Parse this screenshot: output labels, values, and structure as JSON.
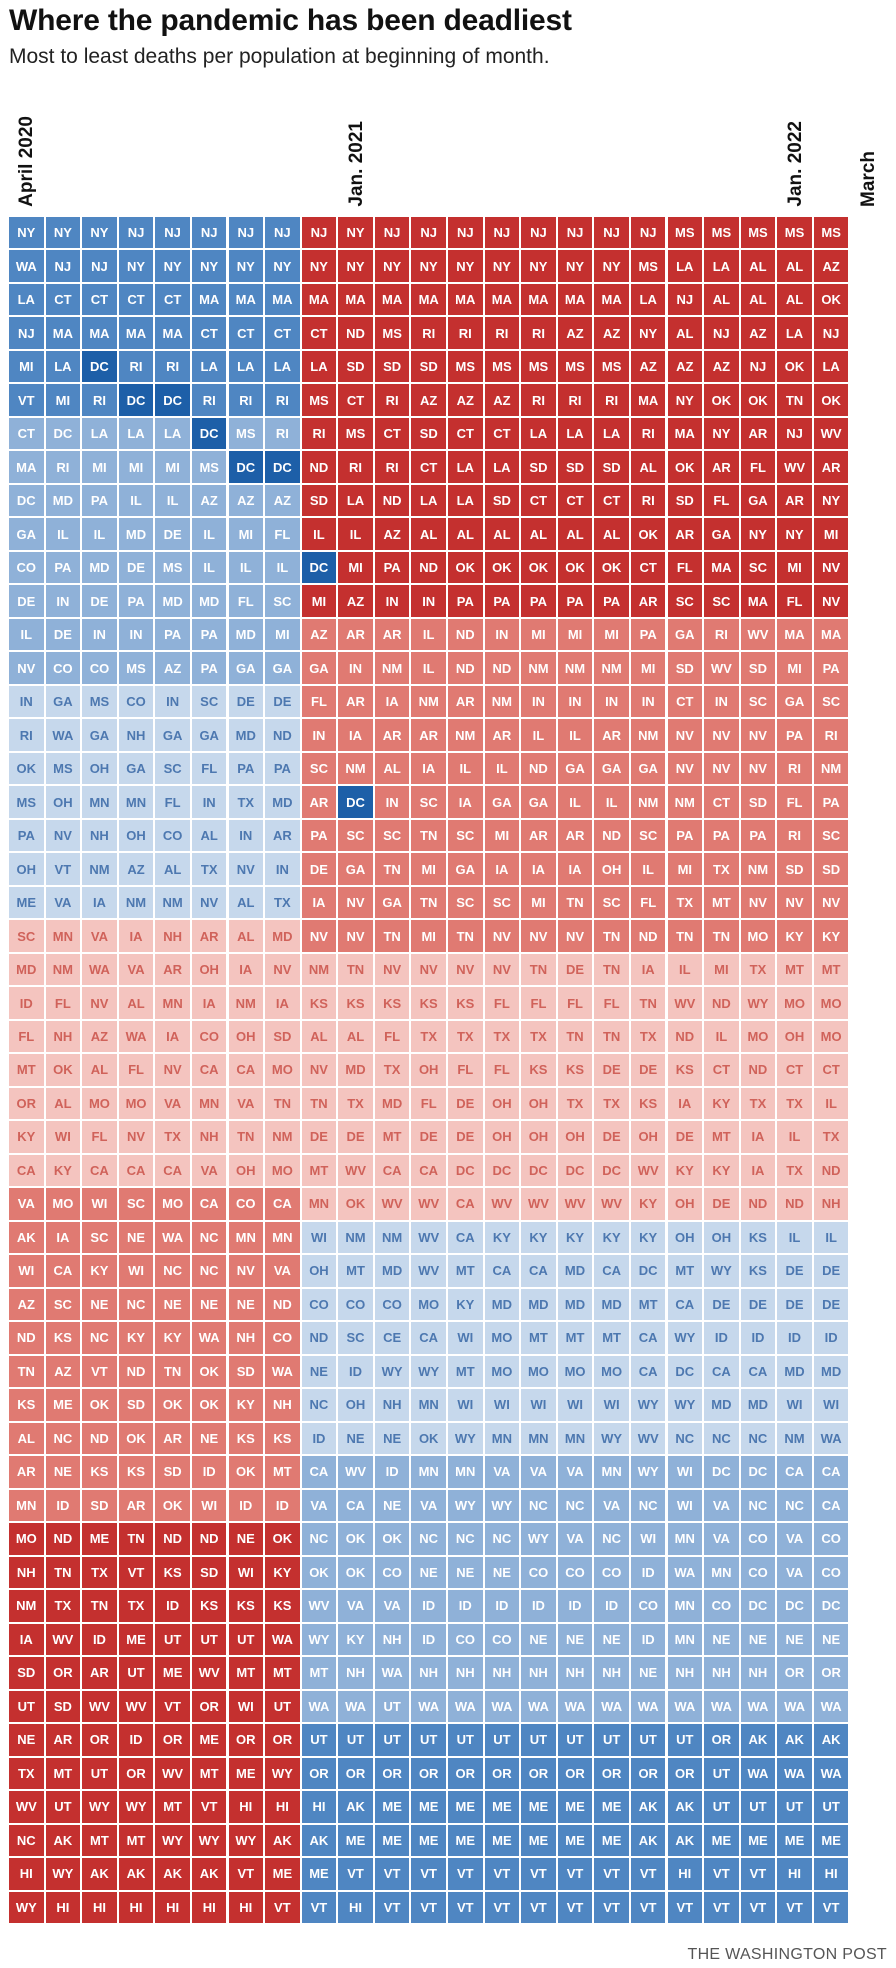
{
  "title": "Where the pandemic has been deadliest",
  "subtitle": "Most to least deaths per population at beginning of month.",
  "source": "THE WASHINGTON POST",
  "colors": {
    "high_dark": "#c4302f",
    "high_mid": "#e07a72",
    "high_light": "#f4c4bf",
    "low_light": "#c6d8ec",
    "low_mid": "#8fb1d8",
    "low_dark": "#4f86c2",
    "extreme_low": "#1d5fa8",
    "text_light": "#ffffff"
  },
  "chart_data": {
    "type": "heatmap",
    "x_tick_labels": [
      {
        "col": 0,
        "label": "April 2020"
      },
      {
        "col": 9,
        "label": "Jan. 2021"
      },
      {
        "col": 21,
        "label": "Jan. 2022"
      },
      {
        "col": 23,
        "label": "March"
      }
    ],
    "columns": [
      [
        "NY",
        "WA",
        "LA",
        "NJ",
        "MI",
        "VT",
        "CT",
        "MA",
        "DC",
        "GA",
        "CO",
        "DE",
        "IL",
        "NV",
        "IN",
        "RI",
        "OK",
        "MS",
        "PA",
        "OH",
        "ME",
        "SC",
        "MD",
        "ID",
        "FL",
        "MT",
        "OR",
        "KY",
        "CA",
        "VA",
        "AK",
        "WI",
        "AZ",
        "ND",
        "TN",
        "KS",
        "AL",
        "AR",
        "MN",
        "MO",
        "NH",
        "NM",
        "IA",
        "SD",
        "UT",
        "NE",
        "TX",
        "WV",
        "NC",
        "HI",
        "WY"
      ],
      [
        "NY",
        "NJ",
        "CT",
        "MA",
        "LA",
        "MI",
        "DC",
        "RI",
        "MD",
        "IL",
        "PA",
        "IN",
        "DE",
        "CO",
        "GA",
        "WA",
        "MS",
        "OH",
        "NV",
        "VT",
        "VA",
        "MN",
        "NM",
        "FL",
        "NH",
        "OK",
        "AL",
        "WI",
        "KY",
        "MO",
        "IA",
        "CA",
        "SC",
        "KS",
        "AZ",
        "ME",
        "NC",
        "NE",
        "ID",
        "ND",
        "TN",
        "TX",
        "WV",
        "OR",
        "SD",
        "AR",
        "MT",
        "UT",
        "AK",
        "WY",
        "HI"
      ],
      [
        "NY",
        "NJ",
        "CT",
        "MA",
        "DC",
        "RI",
        "LA",
        "MI",
        "PA",
        "IL",
        "MD",
        "DE",
        "IN",
        "CO",
        "MS",
        "GA",
        "OH",
        "MN",
        "NH",
        "NM",
        "IA",
        "VA",
        "WA",
        "NV",
        "AZ",
        "AL",
        "MO",
        "FL",
        "CA",
        "WI",
        "SC",
        "KY",
        "NE",
        "NC",
        "VT",
        "OK",
        "ND",
        "KS",
        "SD",
        "ME",
        "TX",
        "TN",
        "ID",
        "AR",
        "WV",
        "OR",
        "UT",
        "WY",
        "MT",
        "AK",
        "HI"
      ],
      [
        "NJ",
        "NY",
        "CT",
        "MA",
        "RI",
        "DC",
        "LA",
        "MI",
        "IL",
        "MD",
        "DE",
        "PA",
        "IN",
        "MS",
        "CO",
        "NH",
        "GA",
        "MN",
        "OH",
        "AZ",
        "NM",
        "IA",
        "VA",
        "AL",
        "WA",
        "FL",
        "MO",
        "NV",
        "CA",
        "SC",
        "NE",
        "WI",
        "NC",
        "KY",
        "ND",
        "SD",
        "OK",
        "KS",
        "AR",
        "TN",
        "VT",
        "TX",
        "ME",
        "UT",
        "WV",
        "ID",
        "OR",
        "WY",
        "MT",
        "AK",
        "HI"
      ],
      [
        "NJ",
        "NY",
        "CT",
        "MA",
        "RI",
        "DC",
        "LA",
        "MI",
        "IL",
        "DE",
        "MS",
        "MD",
        "PA",
        "AZ",
        "IN",
        "GA",
        "SC",
        "FL",
        "CO",
        "AL",
        "NM",
        "NH",
        "AR",
        "MN",
        "IA",
        "NV",
        "VA",
        "TX",
        "CA",
        "MO",
        "WA",
        "NC",
        "NE",
        "KY",
        "TN",
        "OK",
        "AR",
        "SD",
        "OK",
        "ND",
        "KS",
        "ID",
        "UT",
        "ME",
        "VT",
        "OR",
        "WV",
        "MT",
        "WY",
        "AK",
        "HI"
      ],
      [
        "NJ",
        "NY",
        "MA",
        "CT",
        "LA",
        "RI",
        "DC",
        "MS",
        "AZ",
        "IL",
        "IL",
        "MD",
        "PA",
        "PA",
        "SC",
        "GA",
        "FL",
        "IN",
        "AL",
        "TX",
        "NV",
        "AR",
        "OH",
        "IA",
        "CO",
        "CA",
        "MN",
        "NH",
        "VA",
        "CA",
        "NC",
        "NC",
        "NE",
        "WA",
        "OK",
        "OK",
        "NE",
        "ID",
        "WI",
        "ND",
        "SD",
        "KS",
        "UT",
        "WV",
        "OR",
        "ME",
        "MT",
        "VT",
        "WY",
        "AK",
        "HI"
      ],
      [
        "NJ",
        "NY",
        "MA",
        "CT",
        "LA",
        "RI",
        "MS",
        "DC",
        "AZ",
        "MI",
        "IL",
        "FL",
        "MD",
        "GA",
        "DE",
        "MD",
        "PA",
        "TX",
        "IN",
        "NV",
        "AL",
        "AL",
        "IA",
        "NM",
        "OH",
        "CA",
        "VA",
        "TN",
        "OH",
        "CO",
        "MN",
        "NV",
        "NE",
        "NH",
        "SD",
        "KY",
        "KS",
        "OK",
        "ID",
        "NE",
        "WI",
        "KS",
        "UT",
        "MT",
        "WI",
        "OR",
        "ME",
        "HI",
        "WY",
        "VT",
        "HI"
      ],
      [
        "NJ",
        "NY",
        "MA",
        "CT",
        "LA",
        "RI",
        "RI",
        "DC",
        "AZ",
        "FL",
        "IL",
        "SC",
        "MI",
        "GA",
        "DE",
        "ND",
        "PA",
        "MD",
        "AR",
        "IN",
        "TX",
        "MD",
        "NV",
        "IA",
        "SD",
        "MO",
        "TN",
        "NM",
        "MO",
        "CA",
        "MN",
        "VA",
        "ND",
        "CO",
        "WA",
        "NH",
        "KS",
        "MT",
        "ID",
        "OK",
        "KY",
        "KS",
        "WA",
        "MT",
        "UT",
        "OR",
        "WY",
        "HI",
        "AK",
        "ME",
        "VT"
      ],
      [
        "NJ",
        "NY",
        "MA",
        "CT",
        "LA",
        "MS",
        "RI",
        "ND",
        "SD",
        "IL",
        "DC",
        "MI",
        "AZ",
        "GA",
        "FL",
        "IN",
        "SC",
        "AR",
        "PA",
        "DE",
        "IA",
        "NV",
        "NM",
        "KS",
        "AL",
        "NV",
        "TN",
        "DE",
        "MT",
        "MN",
        "WI",
        "OH",
        "CO",
        "ND",
        "NE",
        "NC",
        "ID",
        "CA",
        "VA",
        "NC",
        "OK",
        "WV",
        "WY",
        "MT",
        "WA",
        "UT",
        "OR",
        "HI",
        "AK",
        "ME",
        "VT"
      ],
      [
        "NY",
        "NY",
        "MA",
        "ND",
        "SD",
        "CT",
        "MS",
        "RI",
        "LA",
        "IL",
        "MI",
        "AZ",
        "AR",
        "IN",
        "AR",
        "IA",
        "NM",
        "DC",
        "SC",
        "GA",
        "NV",
        "NV",
        "TN",
        "KS",
        "AL",
        "MD",
        "TX",
        "DE",
        "WV",
        "OK",
        "NM",
        "MT",
        "CO",
        "SC",
        "ID",
        "OH",
        "NE",
        "WV",
        "CA",
        "OK",
        "OK",
        "VA",
        "KY",
        "NH",
        "WA",
        "UT",
        "OR",
        "AK",
        "ME",
        "VT",
        "HI"
      ],
      [
        "NJ",
        "NY",
        "MA",
        "MS",
        "SD",
        "RI",
        "CT",
        "RI",
        "ND",
        "AZ",
        "PA",
        "IN",
        "AR",
        "NM",
        "IA",
        "AR",
        "AL",
        "IN",
        "SC",
        "TN",
        "GA",
        "TN",
        "NV",
        "KS",
        "FL",
        "TX",
        "MD",
        "MT",
        "CA",
        "WV",
        "NM",
        "MD",
        "CO",
        "CE",
        "WY",
        "NH",
        "NE",
        "ID",
        "NE",
        "OK",
        "CO",
        "VA",
        "NH",
        "WA",
        "UT",
        "UT",
        "OR",
        "ME",
        "ME",
        "VT",
        "VT"
      ],
      [
        "NJ",
        "NY",
        "MA",
        "RI",
        "SD",
        "AZ",
        "SD",
        "CT",
        "LA",
        "AL",
        "ND",
        "IN",
        "IL",
        "IL",
        "NM",
        "AR",
        "IA",
        "SC",
        "TN",
        "MI",
        "TN",
        "MI",
        "NV",
        "KS",
        "TX",
        "OH",
        "FL",
        "DE",
        "CA",
        "WV",
        "WV",
        "WV",
        "MO",
        "CA",
        "WY",
        "MN",
        "OK",
        "MN",
        "VA",
        "NC",
        "NE",
        "ID",
        "ID",
        "NH",
        "WA",
        "UT",
        "OR",
        "ME",
        "ME",
        "VT",
        "VT"
      ],
      [
        "NJ",
        "NY",
        "MA",
        "RI",
        "MS",
        "AZ",
        "CT",
        "LA",
        "LA",
        "AL",
        "OK",
        "PA",
        "ND",
        "ND",
        "AR",
        "NM",
        "IL",
        "IA",
        "SC",
        "GA",
        "SC",
        "TN",
        "NV",
        "KS",
        "TX",
        "FL",
        "DE",
        "DE",
        "DC",
        "CA",
        "CA",
        "MT",
        "KY",
        "WI",
        "MT",
        "WI",
        "WY",
        "MN",
        "WY",
        "NC",
        "NE",
        "ID",
        "CO",
        "NH",
        "WA",
        "UT",
        "OR",
        "ME",
        "ME",
        "VT",
        "VT"
      ],
      [
        "NJ",
        "NY",
        "MA",
        "RI",
        "MS",
        "AZ",
        "CT",
        "LA",
        "SD",
        "AL",
        "OK",
        "PA",
        "IN",
        "ND",
        "NM",
        "AR",
        "IL",
        "GA",
        "MI",
        "IA",
        "SC",
        "NV",
        "NV",
        "FL",
        "TX",
        "FL",
        "OH",
        "OH",
        "DC",
        "WV",
        "KY",
        "CA",
        "MD",
        "MO",
        "MO",
        "WI",
        "MN",
        "VA",
        "WY",
        "NC",
        "NE",
        "ID",
        "CO",
        "NH",
        "WA",
        "UT",
        "OR",
        "ME",
        "ME",
        "VT",
        "VT"
      ],
      [
        "NJ",
        "NY",
        "MA",
        "RI",
        "MS",
        "RI",
        "LA",
        "SD",
        "CT",
        "AL",
        "OK",
        "PA",
        "MI",
        "NM",
        "IN",
        "IL",
        "ND",
        "GA",
        "AR",
        "IA",
        "MI",
        "NV",
        "TN",
        "FL",
        "TX",
        "KS",
        "OH",
        "OH",
        "DC",
        "WV",
        "KY",
        "CA",
        "MD",
        "MT",
        "MO",
        "WI",
        "MN",
        "VA",
        "NC",
        "WY",
        "CO",
        "ID",
        "NE",
        "NH",
        "WA",
        "UT",
        "OR",
        "ME",
        "ME",
        "VT",
        "VT"
      ],
      [
        "NJ",
        "NY",
        "MA",
        "AZ",
        "MS",
        "RI",
        "LA",
        "SD",
        "CT",
        "AL",
        "OK",
        "PA",
        "MI",
        "NM",
        "IN",
        "IL",
        "GA",
        "IL",
        "AR",
        "IA",
        "TN",
        "NV",
        "DE",
        "FL",
        "TN",
        "KS",
        "TX",
        "OH",
        "DC",
        "WV",
        "KY",
        "MD",
        "MD",
        "MT",
        "MO",
        "WI",
        "MN",
        "VA",
        "NC",
        "VA",
        "CO",
        "ID",
        "NE",
        "NH",
        "WA",
        "UT",
        "OR",
        "ME",
        "ME",
        "VT",
        "VT"
      ],
      [
        "NJ",
        "NY",
        "MA",
        "AZ",
        "MS",
        "RI",
        "LA",
        "SD",
        "CT",
        "AL",
        "OK",
        "PA",
        "MI",
        "NM",
        "IN",
        "AR",
        "GA",
        "IL",
        "ND",
        "OH",
        "SC",
        "TN",
        "TN",
        "FL",
        "TN",
        "DE",
        "TX",
        "DE",
        "DC",
        "WV",
        "KY",
        "CA",
        "MD",
        "MT",
        "MO",
        "WI",
        "WY",
        "MN",
        "VA",
        "NC",
        "CO",
        "ID",
        "NE",
        "NH",
        "WA",
        "UT",
        "OR",
        "ME",
        "ME",
        "VT",
        "VT"
      ],
      [
        "NJ",
        "MS",
        "LA",
        "NY",
        "AZ",
        "MA",
        "RI",
        "AL",
        "RI",
        "OK",
        "CT",
        "AR",
        "PA",
        "MI",
        "IN",
        "NM",
        "GA",
        "NM",
        "SC",
        "IL",
        "FL",
        "ND",
        "IA",
        "TN",
        "TX",
        "DE",
        "KS",
        "OH",
        "WV",
        "KY",
        "KY",
        "DC",
        "MT",
        "CA",
        "CA",
        "WY",
        "WV",
        "WY",
        "NC",
        "WI",
        "ID",
        "CO",
        "ID",
        "NE",
        "WA",
        "UT",
        "OR",
        "AK",
        "AK",
        "VT",
        "VT"
      ],
      [
        "MS",
        "LA",
        "NJ",
        "AL",
        "AZ",
        "NY",
        "MA",
        "OK",
        "SD",
        "AR",
        "FL",
        "SC",
        "GA",
        "SD",
        "CT",
        "NV",
        "NV",
        "NM",
        "PA",
        "MI",
        "TX",
        "TN",
        "IL",
        "WV",
        "ND",
        "KS",
        "IA",
        "DE",
        "KY",
        "OH",
        "OH",
        "MT",
        "CA",
        "WY",
        "DC",
        "WY",
        "NC",
        "WI",
        "WI",
        "MN",
        "WA",
        "MN",
        "MN",
        "NH",
        "WA",
        "UT",
        "OR",
        "AK",
        "AK",
        "HI",
        "VT"
      ],
      [
        "MS",
        "LA",
        "AL",
        "NJ",
        "AZ",
        "OK",
        "NY",
        "AR",
        "FL",
        "GA",
        "MA",
        "SC",
        "RI",
        "WV",
        "IN",
        "NV",
        "NV",
        "CT",
        "PA",
        "TX",
        "MT",
        "TN",
        "MI",
        "ND",
        "IL",
        "CT",
        "KY",
        "MT",
        "KY",
        "DE",
        "OH",
        "WY",
        "DE",
        "ID",
        "CA",
        "MD",
        "NC",
        "DC",
        "VA",
        "VA",
        "MN",
        "CO",
        "NE",
        "NH",
        "WA",
        "OR",
        "UT",
        "UT",
        "ME",
        "VT",
        "VT"
      ],
      [
        "MS",
        "AL",
        "AL",
        "AZ",
        "NJ",
        "OK",
        "AR",
        "FL",
        "GA",
        "NY",
        "SC",
        "MA",
        "WV",
        "SD",
        "SC",
        "NV",
        "NV",
        "SD",
        "PA",
        "NM",
        "NV",
        "MO",
        "TX",
        "WY",
        "MO",
        "ND",
        "TX",
        "IA",
        "IA",
        "ND",
        "KS",
        "KS",
        "DE",
        "ID",
        "CA",
        "MD",
        "NC",
        "DC",
        "NC",
        "CO",
        "CO",
        "DC",
        "NE",
        "NH",
        "WA",
        "AK",
        "WA",
        "UT",
        "ME",
        "VT",
        "VT"
      ],
      [
        "MS",
        "AL",
        "AL",
        "LA",
        "OK",
        "TN",
        "NJ",
        "WV",
        "AR",
        "NY",
        "MI",
        "FL",
        "MA",
        "MI",
        "GA",
        "PA",
        "RI",
        "FL",
        "RI",
        "SD",
        "NV",
        "KY",
        "MT",
        "MO",
        "OH",
        "CT",
        "TX",
        "IL",
        "TX",
        "ND",
        "IL",
        "DE",
        "DE",
        "ID",
        "MD",
        "WI",
        "NM",
        "CA",
        "NC",
        "VA",
        "VA",
        "DC",
        "NE",
        "OR",
        "WA",
        "AK",
        "WA",
        "UT",
        "ME",
        "HI",
        "VT"
      ],
      [
        "MS",
        "AZ",
        "OK",
        "NJ",
        "LA",
        "OK",
        "WV",
        "AR",
        "NY",
        "MI",
        "NV",
        "NV",
        "MA",
        "PA",
        "SC",
        "RI",
        "NM",
        "PA",
        "SC",
        "SD",
        "NV",
        "KY",
        "MT",
        "MO",
        "MO",
        "CT",
        "IL",
        "TX",
        "ND",
        "NH",
        "IL",
        "DE",
        "DE",
        "ID",
        "MD",
        "WI",
        "WA",
        "CA",
        "CA",
        "CO",
        "CO",
        "DC",
        "NE",
        "OR",
        "WA",
        "AK",
        "WA",
        "UT",
        "ME",
        "HI",
        "VT"
      ]
    ],
    "tone_scheme": "rank position in column; top rows highest deaths per population (red), bottom rows lowest (blue); DC marked dark blue where rank drops sharply"
  }
}
